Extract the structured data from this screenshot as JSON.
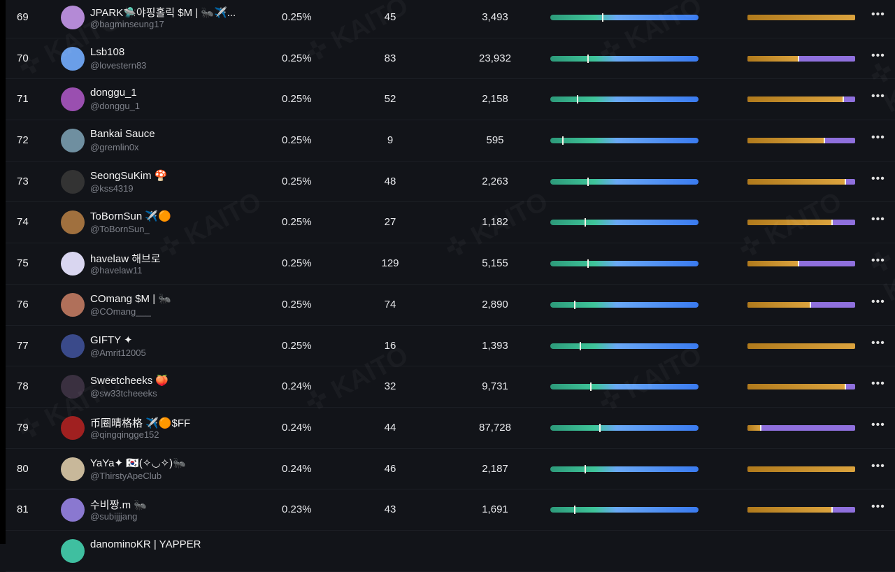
{
  "watermark": "✜ KAITO",
  "colors": {
    "background": "#121419",
    "bar1_start": "#3fc59a",
    "bar1_end": "#3a7bf0",
    "bar2_gold": "#dba33e",
    "bar2_purple": "#8f70dd"
  },
  "rows": [
    {
      "rank": "69",
      "name": "JPARK🛸야핑홀릭 $M | 🐜✈️...",
      "handle": "@bagminseung17",
      "pct": "0.25%",
      "count": "45",
      "value": "3,493",
      "bar1": 0.35,
      "bar2": 1.0,
      "avatar": "#b48ad6"
    },
    {
      "rank": "70",
      "name": "Lsb108",
      "handle": "@lovestern83",
      "pct": "0.25%",
      "count": "83",
      "value": "23,932",
      "bar1": 0.25,
      "bar2": 0.47,
      "avatar": "#6a9ee8"
    },
    {
      "rank": "71",
      "name": "donggu_1",
      "handle": "@donggu_1",
      "pct": "0.25%",
      "count": "52",
      "value": "2,158",
      "bar1": 0.18,
      "bar2": 0.88,
      "avatar": "#9a4fb0"
    },
    {
      "rank": "72",
      "name": "Bankai Sauce",
      "handle": "@gremlin0x",
      "pct": "0.25%",
      "count": "9",
      "value": "595",
      "bar1": 0.08,
      "bar2": 0.71,
      "avatar": "#6f8fa0"
    },
    {
      "rank": "73",
      "name": "SeongSuKim 🍄",
      "handle": "@kss4319",
      "pct": "0.25%",
      "count": "48",
      "value": "2,263",
      "bar1": 0.25,
      "bar2": 0.9,
      "avatar": "#333"
    },
    {
      "rank": "74",
      "name": "ToBornSun ✈️🟠",
      "handle": "@ToBornSun_",
      "pct": "0.25%",
      "count": "27",
      "value": "1,182",
      "bar1": 0.23,
      "bar2": 0.78,
      "avatar": "#a0703e"
    },
    {
      "rank": "75",
      "name": "havelaw 해브로",
      "handle": "@havelaw11",
      "pct": "0.25%",
      "count": "129",
      "value": "5,155",
      "bar1": 0.25,
      "bar2": 0.47,
      "avatar": "#d9d6f0"
    },
    {
      "rank": "76",
      "name": "COmang $M | 🐜",
      "handle": "@COmang___",
      "pct": "0.25%",
      "count": "74",
      "value": "2,890",
      "bar1": 0.16,
      "bar2": 0.58,
      "avatar": "#b0705a"
    },
    {
      "rank": "77",
      "name": "GIFTY ✦",
      "handle": "@Amrit12005",
      "pct": "0.25%",
      "count": "16",
      "value": "1,393",
      "bar1": 0.2,
      "bar2": 1.0,
      "avatar": "#3a4a8a"
    },
    {
      "rank": "78",
      "name": "Sweetcheeks 🍑",
      "handle": "@sw33tcheeeks",
      "pct": "0.24%",
      "count": "32",
      "value": "9,731",
      "bar1": 0.27,
      "bar2": 0.9,
      "avatar": "#3a3040"
    },
    {
      "rank": "79",
      "name": "币圈晴格格 ✈️🟠$FF",
      "handle": "@qingqingge152",
      "pct": "0.24%",
      "count": "44",
      "value": "87,728",
      "bar1": 0.33,
      "bar2": 0.12,
      "avatar": "#a02020"
    },
    {
      "rank": "80",
      "name": "YaYa✦ 🇰🇷(✧◡✧)🐜",
      "handle": "@ThirstyApeClub",
      "pct": "0.24%",
      "count": "46",
      "value": "2,187",
      "bar1": 0.23,
      "bar2": 1.0,
      "avatar": "#c8b89a"
    },
    {
      "rank": "81",
      "name": "수비짱.m 🐜",
      "handle": "@subijjjang",
      "pct": "0.23%",
      "count": "43",
      "value": "1,691",
      "bar1": 0.16,
      "bar2": 0.78,
      "avatar": "#8a78d0"
    },
    {
      "rank": "",
      "name": "danominoKR | YAPPER",
      "handle": "",
      "pct": "",
      "count": "",
      "value": "",
      "bar1": null,
      "bar2": null,
      "avatar": "#3fbfa0"
    }
  ]
}
